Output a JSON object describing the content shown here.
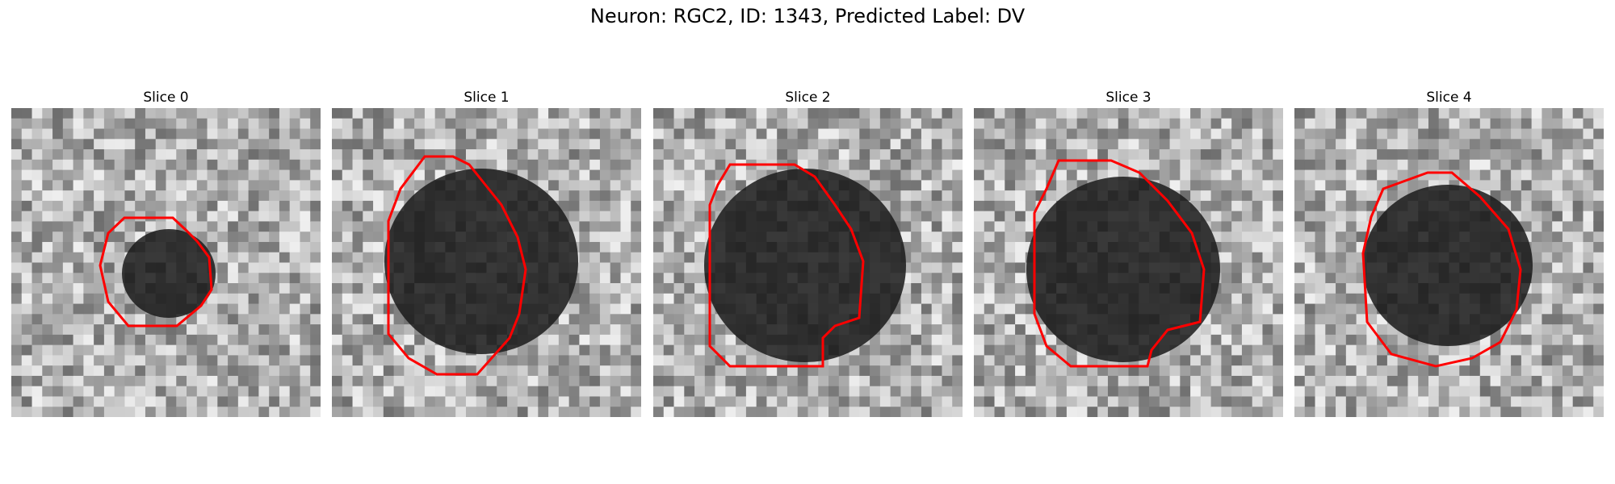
{
  "figure": {
    "title": "Neuron: RGC2, ID: 1343, Predicted Label: DV"
  },
  "panels": [
    {
      "title": "Slice 0"
    },
    {
      "title": "Slice 1"
    },
    {
      "title": "Slice 2"
    },
    {
      "title": "Slice 3"
    },
    {
      "title": "Slice 4"
    }
  ],
  "colors": {
    "contour": "#ff0000",
    "background": "#ffffff"
  }
}
